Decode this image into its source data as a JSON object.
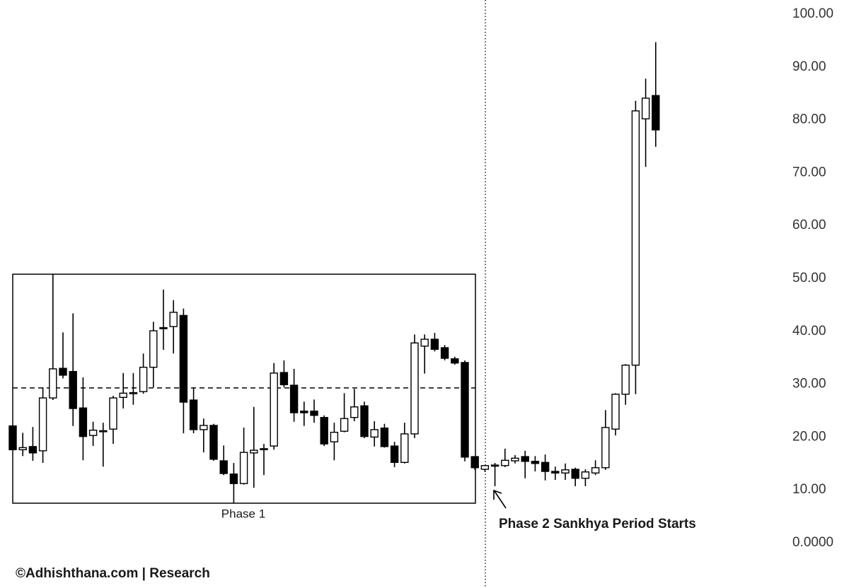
{
  "chart_data": {
    "type": "candlestick",
    "open": [
      22.1,
      17.6,
      18.2,
      17.4,
      27.4,
      33.0,
      32.4,
      25.5,
      20.3,
      21.1,
      21.5,
      27.5,
      28.3,
      28.6,
      33.2,
      40.7,
      40.9,
      43.0,
      27.0,
      21.4,
      22.2,
      15.5,
      13.0,
      11.2,
      17.0,
      17.8,
      18.3,
      32.2,
      29.8,
      24.9,
      24.9,
      23.7,
      19.1,
      21.1,
      23.7,
      25.9,
      20.0,
      21.7,
      18.3,
      15.2,
      20.6,
      37.2,
      38.5,
      36.9,
      34.8,
      34.1,
      16.3,
      13.9,
      14.5,
      14.6,
      15.5,
      16.3,
      15.4,
      15.2,
      13.5,
      13.2,
      13.9,
      12.2,
      13.2,
      14.2,
      21.5,
      28.1,
      33.6,
      80.2,
      84.6
    ],
    "high": [
      22.2,
      20.8,
      21.9,
      29.4,
      50.8,
      39.8,
      43.4,
      31.3,
      22.9,
      22.7,
      27.8,
      32.1,
      32.1,
      35.8,
      41.8,
      47.9,
      45.9,
      44.3,
      29.4,
      23.5,
      22.5,
      18.4,
      15.1,
      21.8,
      25.7,
      18.7,
      34.0,
      34.5,
      32.9,
      26.7,
      27.1,
      24.1,
      22.7,
      28.3,
      29.1,
      26.7,
      23.0,
      22.5,
      19.1,
      22.7,
      39.4,
      39.4,
      39.7,
      37.4,
      35.2,
      34.5,
      16.3,
      14.7,
      15.1,
      17.8,
      16.6,
      17.4,
      16.4,
      16.7,
      14.4,
      15.0,
      14.2,
      13.9,
      15.6,
      25.1,
      28.3,
      33.8,
      83.6,
      87.8,
      94.7
    ],
    "low": [
      17.5,
      16.4,
      15.5,
      15.1,
      27.0,
      31.1,
      22.1,
      15.6,
      18.3,
      14.4,
      18.7,
      25.4,
      26.1,
      28.2,
      29.4,
      36.5,
      35.8,
      20.7,
      20.7,
      17.1,
      15.5,
      12.8,
      7.5,
      11.0,
      10.4,
      12.8,
      17.6,
      29.4,
      22.9,
      22.1,
      22.7,
      18.3,
      15.6,
      20.9,
      23.0,
      19.8,
      18.2,
      18.0,
      14.3,
      15.0,
      19.8,
      32.0,
      36.2,
      34.5,
      33.7,
      15.4,
      13.8,
      13.4,
      10.7,
      14.3,
      15.0,
      12.2,
      13.5,
      11.8,
      11.9,
      11.9,
      10.7,
      10.7,
      12.8,
      13.8,
      20.3,
      26.1,
      28.1,
      71.1,
      74.9
    ],
    "close": [
      17.6,
      18.0,
      17.0,
      27.4,
      32.9,
      31.7,
      25.4,
      20.1,
      21.3,
      21.2,
      27.4,
      28.3,
      28.4,
      33.2,
      40.1,
      40.5,
      43.6,
      26.6,
      21.4,
      22.2,
      15.8,
      13.1,
      11.2,
      17.1,
      17.5,
      17.6,
      32.1,
      29.9,
      24.6,
      24.6,
      24.1,
      18.7,
      20.9,
      23.5,
      25.7,
      20.1,
      21.4,
      18.2,
      15.2,
      20.6,
      37.8,
      38.5,
      36.6,
      34.9,
      34.0,
      16.2,
      14.2,
      14.6,
      14.7,
      15.6,
      16.0,
      15.4,
      15.0,
      13.5,
      13.2,
      13.8,
      12.2,
      13.4,
      14.2,
      21.8,
      28.1,
      33.6,
      81.7,
      84.1,
      78.1
    ],
    "up_color": "#ffffff",
    "down_color": "#000000",
    "reference_line": 29.3,
    "ylim": [
      0,
      100
    ],
    "yticks": [
      {
        "value": 0,
        "label": "0.0000"
      },
      {
        "value": 10,
        "label": "10.00"
      },
      {
        "value": 20,
        "label": "20.00"
      },
      {
        "value": 30,
        "label": "30.00"
      },
      {
        "value": 40,
        "label": "40.00"
      },
      {
        "value": 50,
        "label": "50.00"
      },
      {
        "value": 60,
        "label": "60.00"
      },
      {
        "value": 70,
        "label": "70.00"
      },
      {
        "value": 80,
        "label": "80.00"
      },
      {
        "value": 90,
        "label": "90.00"
      },
      {
        "value": 100,
        "label": "100.00"
      }
    ],
    "annotations": [
      "Phase 1",
      "Phase 2 Sankhya Period Starts"
    ],
    "source": "©Adhishthana.com | Research"
  }
}
